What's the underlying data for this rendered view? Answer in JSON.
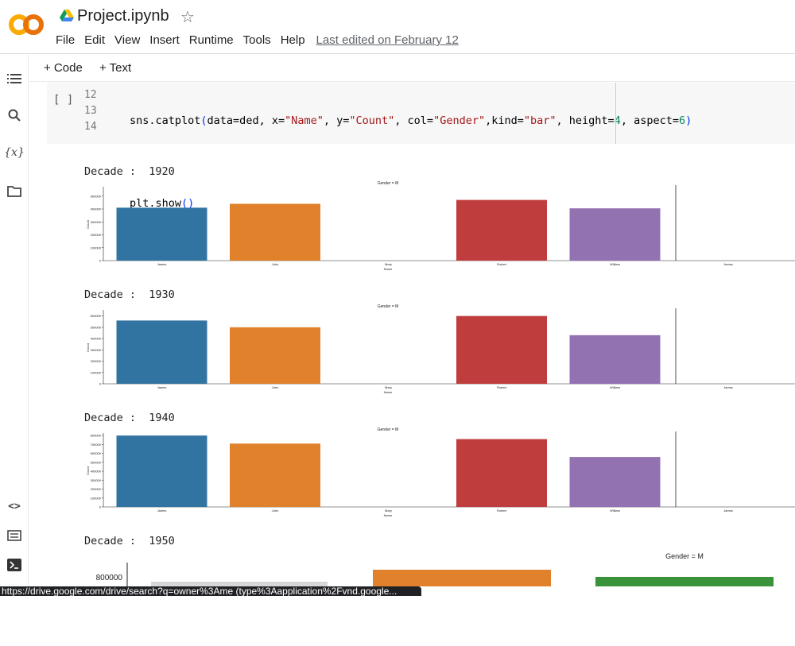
{
  "header": {
    "title": "Project.ipynb",
    "logo_text": "CO",
    "menu": [
      "File",
      "Edit",
      "View",
      "Insert",
      "Runtime",
      "Tools",
      "Help"
    ],
    "last_edited": "Last edited on February 12"
  },
  "toolbar": {
    "add_code": "+ Code",
    "add_text": "+ Text"
  },
  "cell": {
    "run_label": "[ ]",
    "line_numbers": [
      "12",
      "13",
      "14"
    ]
  },
  "outputs": [
    {
      "decade_label": "Decade :  1920"
    },
    {
      "decade_label": "Decade :  1930"
    },
    {
      "decade_label": "Decade :  1940"
    },
    {
      "decade_label": "Decade :  1950"
    }
  ],
  "chart_labels": {
    "facet_title": "Gender = M",
    "xlabel": "Name",
    "ylabel": "Count"
  },
  "status_url": "https://drive.google.com/drive/search?q=owner%3Ame (type%3Aapplication%2Fvnd.google...",
  "colors": {
    "blue": "#3274a1",
    "orange": "#e1812c",
    "red": "#c03d3e",
    "purple": "#9372b2",
    "green": "#3a923a"
  },
  "chart_data": [
    {
      "type": "bar",
      "title": "Gender = M",
      "xlabel": "Name",
      "ylabel": "Count",
      "categories": [
        "James",
        "John",
        "Mary",
        "Robert",
        "William",
        "James"
      ],
      "values": [
        410000,
        440000,
        0,
        470000,
        405000,
        0
      ],
      "ylim": [
        0,
        560000
      ],
      "yticks": [
        "0",
        "100000",
        "200000",
        "300000",
        "400000",
        "500000"
      ]
    },
    {
      "type": "bar",
      "title": "Gender = M",
      "xlabel": "Name",
      "ylabel": "Count",
      "categories": [
        "James",
        "John",
        "Mary",
        "Robert",
        "William",
        "James"
      ],
      "values": [
        560000,
        500000,
        0,
        600000,
        430000,
        0
      ],
      "ylim": [
        0,
        640000
      ],
      "yticks": [
        "0",
        "100000",
        "200000",
        "300000",
        "400000",
        "500000",
        "600000"
      ]
    },
    {
      "type": "bar",
      "title": "Gender = M",
      "xlabel": "Name",
      "ylabel": "Count",
      "categories": [
        "James",
        "John",
        "Mary",
        "Robert",
        "William",
        "James"
      ],
      "values": [
        800000,
        710000,
        0,
        760000,
        560000,
        0
      ],
      "ylim": [
        0,
        810000
      ],
      "yticks": [
        "0",
        "100000",
        "200000",
        "300000",
        "400000",
        "500000",
        "600000",
        "700000",
        "800000"
      ]
    }
  ]
}
